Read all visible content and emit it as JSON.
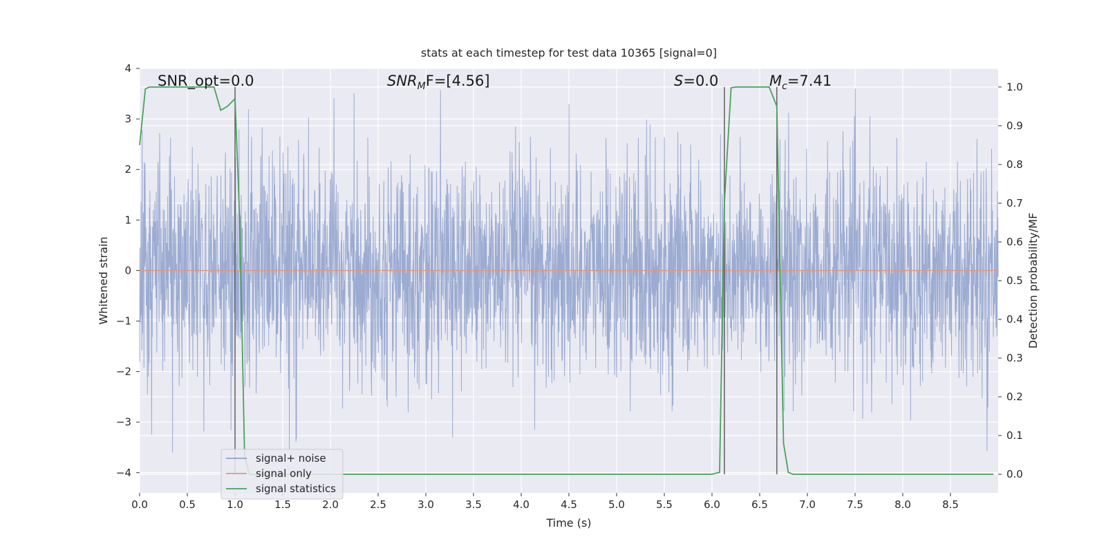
{
  "chart_data": {
    "type": "line",
    "title": "stats at each timestep for test data 10365 [signal=0]",
    "xlabel": "Time (s)",
    "ylabel_left": "Whitened strain",
    "ylabel_right": "Detection probability/MF",
    "xlim": [
      0.0,
      9.0
    ],
    "ylim_left": [
      -4.4,
      4.0
    ],
    "ylim_right": [
      -0.048,
      1.048
    ],
    "x_ticks": [
      "0.0",
      "0.5",
      "1.0",
      "1.5",
      "2.0",
      "2.5",
      "3.0",
      "3.5",
      "4.0",
      "4.5",
      "5.0",
      "5.5",
      "6.0",
      "6.5",
      "7.0",
      "7.5",
      "8.0",
      "8.5"
    ],
    "y_left_ticks": [
      "4",
      "3",
      "2",
      "1",
      "0",
      "−1",
      "−2",
      "−3",
      "−4"
    ],
    "y_right_ticks": [
      "1.0",
      "0.9",
      "0.8",
      "0.7",
      "0.6",
      "0.5",
      "0.4",
      "0.3",
      "0.2",
      "0.1",
      "0.0"
    ],
    "grid": true,
    "legend_position": "lower-left",
    "annotations": {
      "snr_opt": "SNR_opt=0.0",
      "snr_mf_main": "SNR",
      "snr_mf_sub": "M",
      "snr_mf_rest": "F=[4.56]",
      "s_main": "S",
      "s_rest": "=0.0",
      "mc_main": "M",
      "mc_sub": "c",
      "mc_rest": "=7.41"
    },
    "vertical_lines_x": [
      1.0,
      6.13,
      6.68
    ],
    "series": [
      {
        "name": "signal+ noise",
        "color": "#8da0cb",
        "axis": "left",
        "description_values": {
          "x_range": [
            0.0,
            9.0
          ],
          "approx_min": -3.6,
          "approx_max": 3.6
        }
      },
      {
        "name": "signal only",
        "color": "#e5957a",
        "axis": "left",
        "x": [
          0.0,
          9.0
        ],
        "y": [
          0.0,
          0.0
        ]
      },
      {
        "name": "signal statistics",
        "color": "#4aa15a",
        "axis": "right",
        "x": [
          0.0,
          0.06,
          0.1,
          0.2,
          0.3,
          0.4,
          0.5,
          0.6,
          0.7,
          0.78,
          0.85,
          0.92,
          1.0,
          1.05,
          1.1,
          1.15,
          1.2,
          1.5,
          2.0,
          2.5,
          3.0,
          3.5,
          4.0,
          4.5,
          5.0,
          5.5,
          6.0,
          6.08,
          6.13,
          6.2,
          6.25,
          6.3,
          6.4,
          6.5,
          6.6,
          6.68,
          6.75,
          6.8,
          6.85,
          7.0,
          7.5,
          8.0,
          8.5,
          8.95
        ],
        "y": [
          0.85,
          0.995,
          1.0,
          1.0,
          1.0,
          1.0,
          1.0,
          1.0,
          1.0,
          1.0,
          0.94,
          0.95,
          0.97,
          0.65,
          0.05,
          0.0,
          0.0,
          0.0,
          0.0,
          0.0,
          0.0,
          0.0,
          0.0,
          0.0,
          0.0,
          0.0,
          0.0,
          0.005,
          0.7,
          0.998,
          1.0,
          1.0,
          1.0,
          1.0,
          1.0,
          0.95,
          0.08,
          0.005,
          0.0,
          0.0,
          0.0,
          0.0,
          0.0,
          0.0
        ]
      }
    ]
  }
}
